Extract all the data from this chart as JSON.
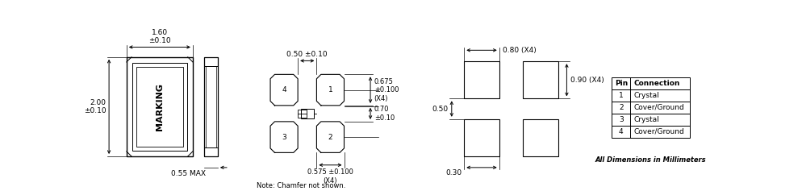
{
  "bg_color": "#ffffff",
  "line_color": "#000000",
  "font_size_small": 6.5,
  "font_size_tiny": 6.0,
  "table_data": {
    "headers": [
      "Pin",
      "Connection"
    ],
    "rows": [
      [
        "1",
        "Crystal"
      ],
      [
        "2",
        "Cover/Ground"
      ],
      [
        "3",
        "Crystal"
      ],
      [
        "4",
        "Cover/Ground"
      ]
    ]
  },
  "dim_texts": {
    "width_top": "1.60\n±0.10",
    "height_left": "2.00\n±0.10",
    "thickness": "0.55 MAX",
    "pad_spacing_top": "0.50 ±0.10",
    "pad_height": "0.675\n±0.100\n(X4)",
    "pad_center": "0.70\n±0.10",
    "pad_width": "0.575 ±0.100\n(X4)",
    "pad_w_top": "0.80 (X4)",
    "pad_h_right": "0.90 (X4)",
    "gap1": "0.50",
    "gap2": "0.30",
    "note": "Note: Chamfer not shown.",
    "all_dim": "All Dimensions in Millimeters",
    "marking": "MARKING"
  }
}
